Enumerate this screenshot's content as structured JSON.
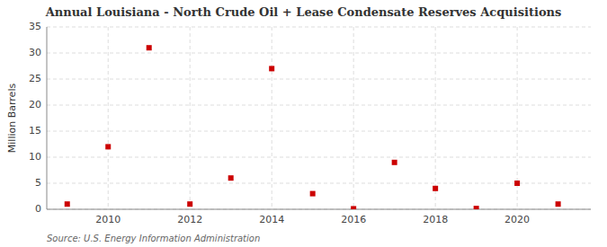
{
  "chart_data": {
    "type": "scatter",
    "title": "Annual Louisiana - North Crude Oil + Lease Condensate Reserves Acquisitions",
    "ylabel": "Million Barrels",
    "annotations": [
      "Source: U.S. Energy Information Administration"
    ],
    "x": [
      2009,
      2010,
      2011,
      2012,
      2013,
      2014,
      2015,
      2016,
      2017,
      2018,
      2019,
      2020,
      2021
    ],
    "values": [
      1.0,
      12.0,
      31.0,
      1.0,
      6.0,
      27.0,
      3.0,
      0.1,
      9.0,
      4.0,
      0.15,
      5.0,
      1.0
    ],
    "color": "#cc0000",
    "marker": "square",
    "xlim": [
      2008.5,
      2021.8
    ],
    "xticks": [
      2010,
      2012,
      2014,
      2016,
      2018,
      2020
    ],
    "ylim": [
      0,
      35
    ],
    "yticks": [
      0,
      5,
      10,
      15,
      20,
      25,
      30,
      35
    ],
    "grid": true
  }
}
